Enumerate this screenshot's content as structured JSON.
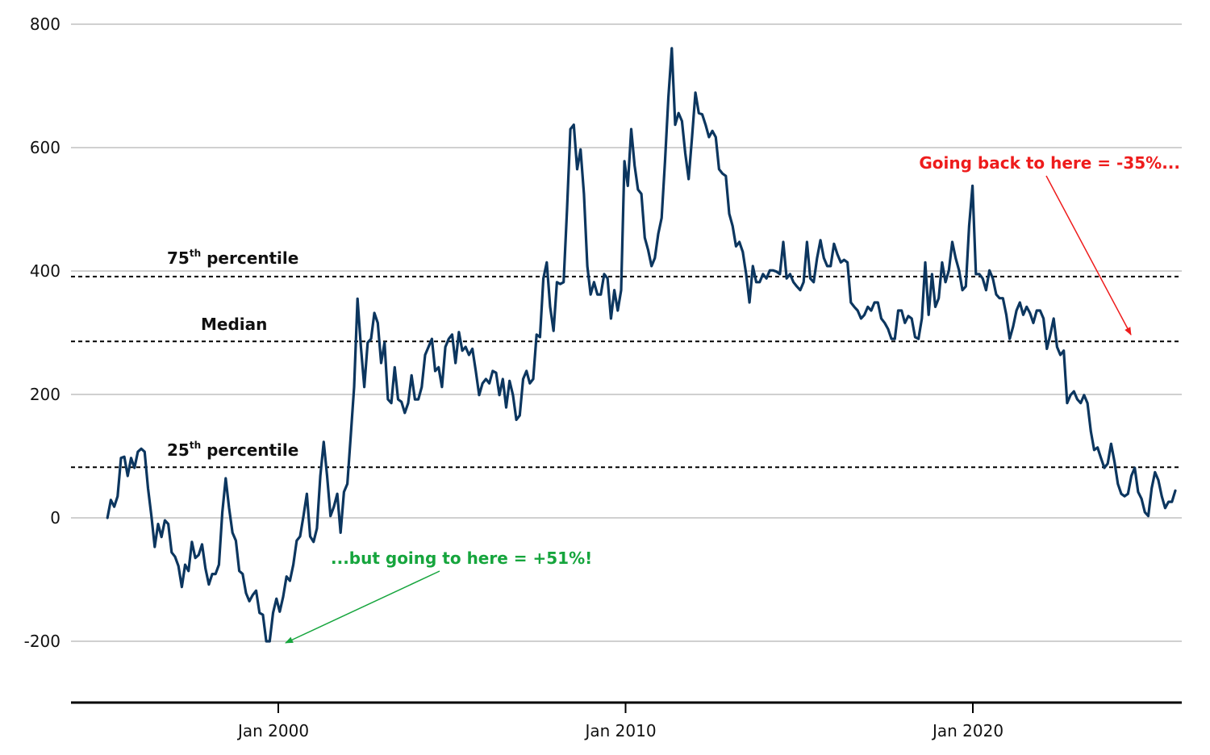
{
  "chart_data": {
    "type": "line",
    "title": "",
    "xlabel": "",
    "ylabel": "",
    "xlim": [
      1995.08,
      2025.83
    ],
    "ylim": [
      -300,
      800
    ],
    "grid": "horizontal",
    "y_ticks": [
      -200,
      0,
      200,
      400,
      600,
      800
    ],
    "y_tick_labels": [
      "-200",
      "0",
      "200",
      "400",
      "600",
      "800"
    ],
    "x_ticks": [
      2000,
      2010,
      2020
    ],
    "x_tick_labels": [
      "Jan 2000",
      "Jan 2010",
      "Jan 2020"
    ],
    "colors": {
      "line": "#0c365f",
      "grid": "#b4b4b4",
      "axis": "#000000",
      "red": "#ee1c1c",
      "green": "#16a53d",
      "ref": "#000000"
    },
    "reference_lines": [
      {
        "name": "75th percentile",
        "label_main": "75",
        "label_sup": "th",
        "label_rest": " percentile",
        "value": 391
      },
      {
        "name": "Median",
        "label_main": "Median",
        "label_sup": "",
        "label_rest": "",
        "value": 286
      },
      {
        "name": "25th percentile",
        "label_main": "25",
        "label_sup": "th",
        "label_rest": " percentile",
        "value": 82
      }
    ],
    "annotations": [
      {
        "text": "Going back to here = -35%...",
        "color": "red",
        "target": {
          "x": 2024.6,
          "y": 286
        }
      },
      {
        "text": "...but going to here = +51%!",
        "color": "green",
        "target": {
          "x": 2000.2,
          "y": -200
        }
      }
    ],
    "series": [
      {
        "name": "value",
        "values": [
          0,
          29,
          18,
          35,
          97,
          99,
          68,
          97,
          81,
          107,
          112,
          107,
          48,
          3,
          -47,
          -10,
          -31,
          -4,
          -10,
          -56,
          -63,
          -78,
          -112,
          -76,
          -86,
          -39,
          -65,
          -60,
          -43,
          -82,
          -108,
          -91,
          -91,
          -76,
          9,
          64,
          16,
          -24,
          -37,
          -86,
          -91,
          -122,
          -135,
          -125,
          -118,
          -154,
          -157,
          -200,
          -200,
          -154,
          -131,
          -152,
          -128,
          -95,
          -102,
          -76,
          -37,
          -30,
          3,
          39,
          -30,
          -39,
          -17,
          68,
          123,
          68,
          3,
          18,
          39,
          -24,
          42,
          55,
          133,
          212,
          355,
          277,
          212,
          284,
          290,
          332,
          316,
          251,
          284,
          192,
          186,
          244,
          192,
          188,
          170,
          186,
          231,
          192,
          192,
          212,
          264,
          277,
          290,
          238,
          244,
          212,
          277,
          290,
          297,
          251,
          301,
          271,
          277,
          264,
          274,
          238,
          199,
          218,
          225,
          218,
          238,
          235,
          199,
          225,
          179,
          222,
          199,
          159,
          166,
          225,
          238,
          218,
          225,
          297,
          293,
          388,
          414,
          342,
          303,
          382,
          379,
          382,
          499,
          630,
          637,
          565,
          597,
          525,
          408,
          362,
          382,
          362,
          362,
          395,
          388,
          323,
          369,
          336,
          369,
          578,
          538,
          630,
          571,
          532,
          525,
          454,
          434,
          408,
          421,
          460,
          486,
          578,
          682,
          761,
          637,
          656,
          643,
          591,
          549,
          617,
          689,
          656,
          654,
          637,
          617,
          627,
          617,
          565,
          558,
          554,
          493,
          473,
          440,
          447,
          431,
          395,
          349,
          408,
          382,
          382,
          395,
          388,
          401,
          401,
          399,
          395,
          447,
          388,
          395,
          382,
          375,
          369,
          382,
          447,
          388,
          382,
          421,
          450,
          421,
          408,
          408,
          444,
          427,
          414,
          418,
          414,
          349,
          342,
          336,
          323,
          329,
          342,
          336,
          349,
          349,
          323,
          316,
          306,
          290,
          290,
          336,
          336,
          316,
          327,
          323,
          293,
          290,
          323,
          414,
          329,
          395,
          342,
          356,
          414,
          382,
          401,
          447,
          421,
          401,
          369,
          375,
          473,
          538,
          395,
          395,
          388,
          369,
          401,
          388,
          362,
          356,
          356,
          329,
          290,
          310,
          336,
          349,
          329,
          342,
          332,
          316,
          336,
          336,
          323,
          274,
          297,
          323,
          277,
          264,
          271,
          186,
          199,
          205,
          192,
          186,
          199,
          186,
          140,
          110,
          114,
          97,
          81,
          88,
          120,
          91,
          55,
          39,
          35,
          39,
          68,
          81,
          42,
          31,
          9,
          3,
          48,
          74,
          61,
          35,
          16,
          26,
          26,
          44
        ]
      }
    ]
  }
}
